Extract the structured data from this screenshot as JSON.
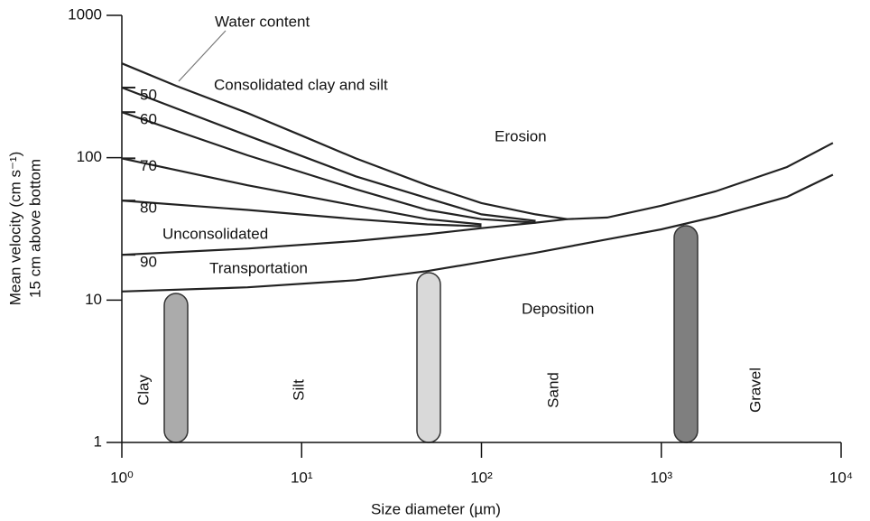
{
  "chart_data": {
    "type": "line",
    "xlabel": "Size diameter (µm)",
    "ylabel": [
      "Mean velocity (cm s⁻¹)",
      "15 cm above bottom"
    ],
    "xscale": "log",
    "yscale": "log",
    "xlim": [
      1,
      10000
    ],
    "ylim": [
      1,
      1000
    ],
    "xticks": [
      {
        "value": 1,
        "label": "10⁰"
      },
      {
        "value": 10,
        "label": "10¹"
      },
      {
        "value": 100,
        "label": "10²"
      },
      {
        "value": 1000,
        "label": "10³"
      },
      {
        "value": 10000,
        "label": "10⁴"
      }
    ],
    "yticks": [
      1,
      10,
      100,
      1000
    ],
    "color": "#222222",
    "series": [
      {
        "x": [
          1,
          2,
          5,
          10,
          20,
          50,
          100,
          200,
          300,
          500,
          1000,
          2000,
          5000,
          9000
        ],
        "values": [
          460,
          320,
          206,
          143,
          99,
          64,
          48,
          40,
          37,
          38,
          46,
          58,
          86,
          127
        ]
      },
      {
        "name": "50",
        "x": [
          1,
          5,
          20,
          50,
          100,
          200
        ],
        "values": [
          311,
          143,
          74,
          52,
          40,
          36
        ]
      },
      {
        "name": "60",
        "x": [
          1,
          5,
          20,
          50,
          100,
          200
        ],
        "values": [
          209,
          104,
          60,
          43,
          37,
          35
        ]
      },
      {
        "name": "70",
        "x": [
          1,
          5,
          20,
          50,
          100
        ],
        "values": [
          99,
          64,
          46,
          37,
          34
        ]
      },
      {
        "name": "80",
        "x": [
          1,
          5,
          20,
          50,
          100
        ],
        "values": [
          50,
          43,
          37,
          34,
          33
        ]
      },
      {
        "name": "90",
        "x": [
          1,
          5,
          20,
          50,
          100,
          200,
          300
        ],
        "values": [
          20.8,
          23,
          26,
          29,
          32,
          35,
          37
        ]
      },
      {
        "x": [
          1,
          5,
          20,
          50,
          100,
          200,
          500,
          1000,
          2000,
          5000,
          9000
        ],
        "values": [
          11.5,
          12.3,
          13.8,
          16,
          18.5,
          21.5,
          26.7,
          31.4,
          38.5,
          53,
          76
        ]
      }
    ],
    "annotations": [
      "Water content",
      "Consolidated clay and silt",
      "Erosion",
      "Unconsolidated",
      "Transportation",
      "Deposition",
      "Clay",
      "Silt",
      "Sand",
      "Gravel"
    ]
  }
}
